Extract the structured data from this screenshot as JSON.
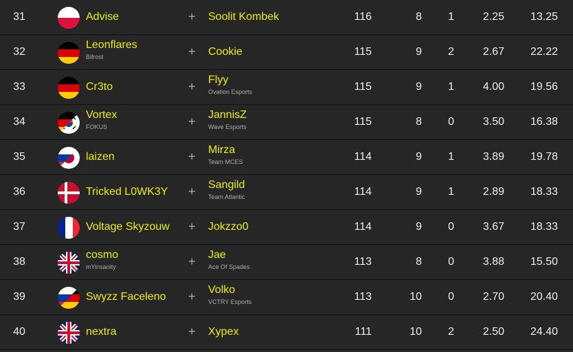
{
  "rows": [
    {
      "rank": "31",
      "flags": [
        "pl"
      ],
      "player1": "Advise",
      "team1": "",
      "player2": "Soolit Kombek",
      "team2": "",
      "points": "116",
      "games": "8",
      "wins": "1",
      "avg": "2.25",
      "kpr": "13.25"
    },
    {
      "rank": "32",
      "flags": [
        "de"
      ],
      "player1": "Leonflares",
      "team1": "Bifrost",
      "player2": "Cookie",
      "team2": "",
      "points": "115",
      "games": "9",
      "wins": "2",
      "avg": "2.67",
      "kpr": "22.22"
    },
    {
      "rank": "33",
      "flags": [
        "de"
      ],
      "player1": "Cr3to",
      "team1": "",
      "player2": "Flyy",
      "team2": "Ovation Esports",
      "points": "115",
      "games": "9",
      "wins": "1",
      "avg": "4.00",
      "kpr": "19.56"
    },
    {
      "rank": "34",
      "flags": [
        "de",
        "kr"
      ],
      "player1": "Vortex",
      "team1": "FOKUS",
      "player2": "JannisZ",
      "team2": "Wave Esports",
      "points": "115",
      "games": "8",
      "wins": "0",
      "avg": "3.50",
      "kpr": "16.38"
    },
    {
      "rank": "35",
      "flags": [
        "ru",
        "jp"
      ],
      "player1": "laizen",
      "team1": "",
      "player2": "Mirza",
      "team2": "Team MCES",
      "points": "114",
      "games": "9",
      "wins": "1",
      "avg": "3.89",
      "kpr": "19.78"
    },
    {
      "rank": "36",
      "flags": [
        "dk"
      ],
      "player1": "Tricked L0WK3Y",
      "team1": "",
      "player2": "Sangild",
      "team2": "Team Atlantic",
      "points": "114",
      "games": "9",
      "wins": "1",
      "avg": "2.89",
      "kpr": "18.33"
    },
    {
      "rank": "37",
      "flags": [
        "fr"
      ],
      "player1": "Voltage Skyzouw",
      "team1": "",
      "player2": "Jokzzo0",
      "team2": "",
      "points": "114",
      "games": "9",
      "wins": "0",
      "avg": "3.67",
      "kpr": "18.33"
    },
    {
      "rank": "38",
      "flags": [
        "gb"
      ],
      "player1": "cosmo",
      "team1": "mYinsanity",
      "player2": "Jae",
      "team2": "Ace Of Spades",
      "points": "113",
      "games": "8",
      "wins": "0",
      "avg": "3.88",
      "kpr": "15.50"
    },
    {
      "rank": "39",
      "flags": [
        "ru",
        "de"
      ],
      "player1": "Swyzz Faceleno",
      "team1": "",
      "player2": "Volko",
      "team2": "VCTRY Esports",
      "points": "113",
      "games": "10",
      "wins": "0",
      "avg": "2.70",
      "kpr": "20.40"
    },
    {
      "rank": "40",
      "flags": [
        "gb"
      ],
      "player1": "nextra",
      "team1": "",
      "player2": "Xypex",
      "team2": "",
      "points": "111",
      "games": "10",
      "wins": "2",
      "avg": "2.50",
      "kpr": "24.40"
    }
  ],
  "plus_icon": "+"
}
